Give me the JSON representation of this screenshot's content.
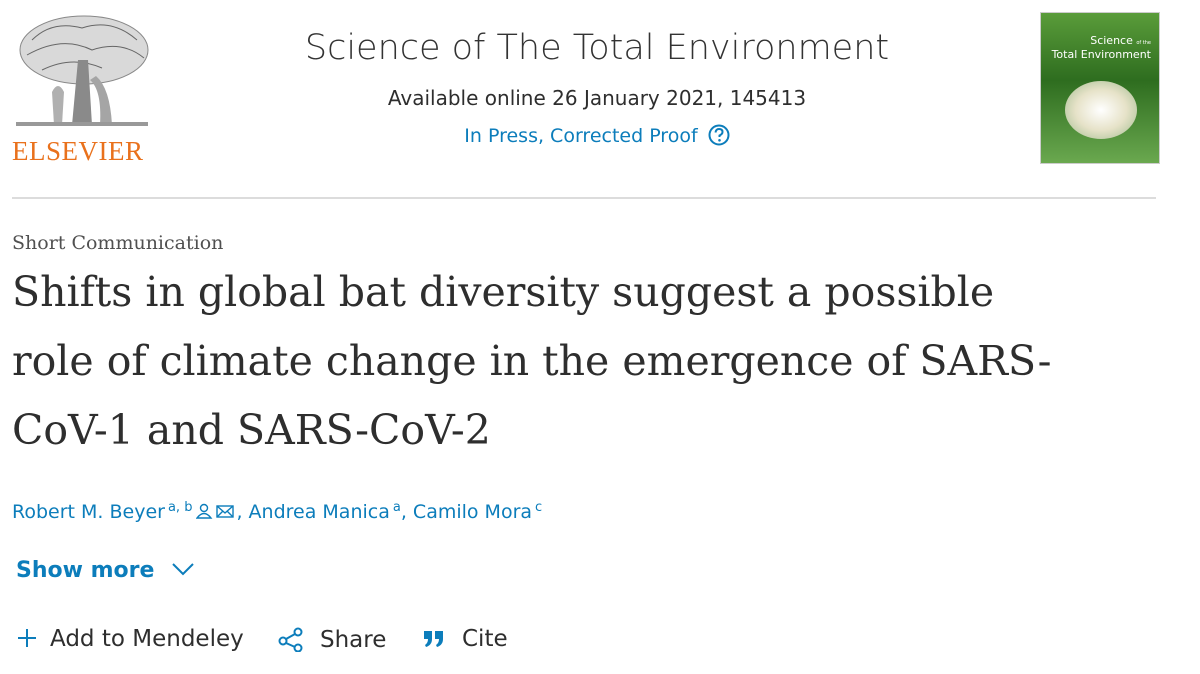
{
  "header": {
    "publisher": "ELSEVIER",
    "journal": "Science of The Total Environment",
    "availability": "Available online 26 January 2021, 145413",
    "status": "In Press, Corrected Proof",
    "cover": {
      "line1": "Science",
      "line2": "of the",
      "line3": "Total Environment"
    }
  },
  "article": {
    "type": "Short Communication",
    "title_lines": [
      "Shifts in global bat diversity suggest a possible",
      "role of climate change in the emergence of SARS-",
      "CoV-1 and SARS-CoV-2"
    ],
    "authors": [
      {
        "name": "Robert M. Beyer",
        "affiliations": "a, b"
      },
      {
        "name": "Andrea Manica",
        "affiliations": "a"
      },
      {
        "name": "Camilo Mora",
        "affiliations": "c"
      }
    ]
  },
  "actions": {
    "show_more": "Show more",
    "mendeley": "Add to Mendeley",
    "share": "Share",
    "cite": "Cite"
  }
}
